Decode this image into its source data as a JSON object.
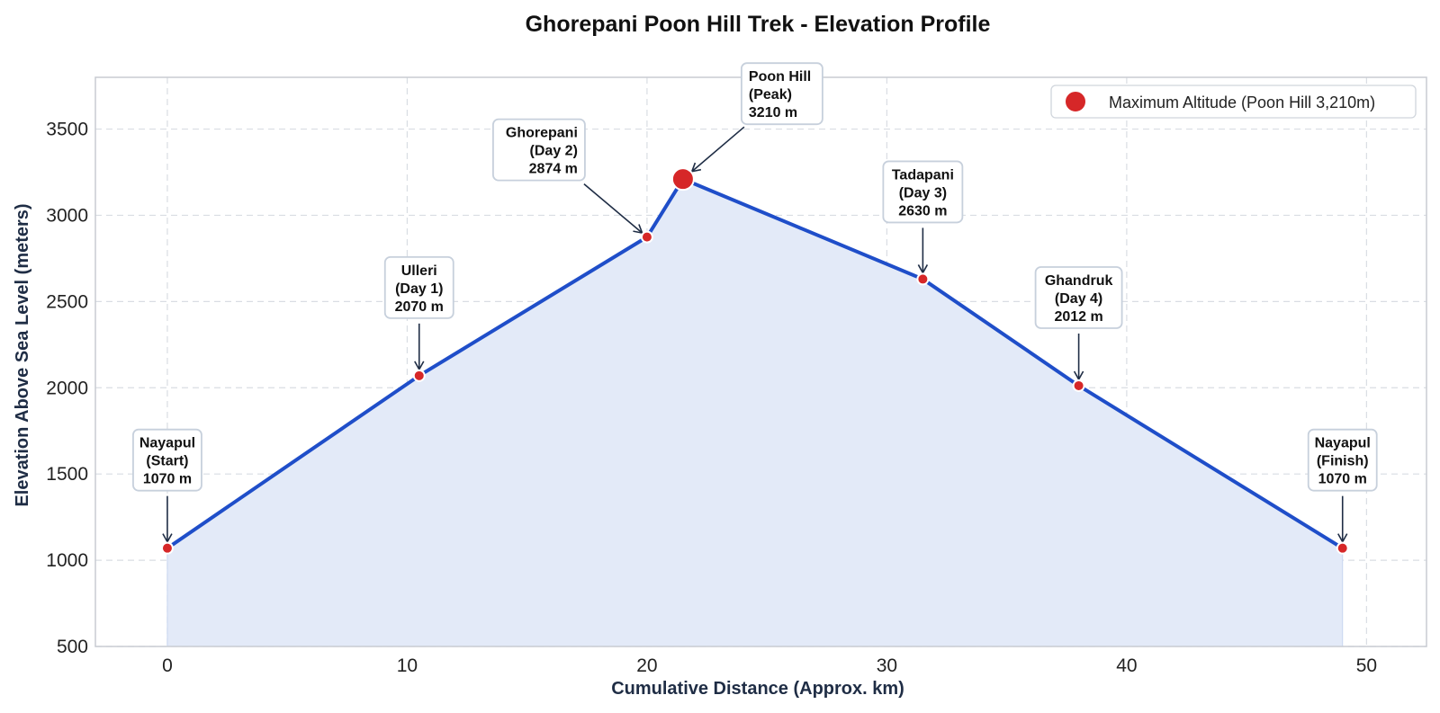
{
  "chart_data": {
    "type": "area",
    "title": "Ghorepani Poon Hill Trek - Elevation Profile",
    "xlabel": "Cumulative Distance (Approx. km)",
    "ylabel": "Elevation Above Sea Level (meters)",
    "xlim": [
      -3,
      52.5
    ],
    "ylim": [
      500,
      3800
    ],
    "xticks": [
      0,
      10,
      20,
      30,
      40,
      50
    ],
    "yticks": [
      500,
      1000,
      1500,
      2000,
      2500,
      3000,
      3500
    ],
    "grid": true,
    "legend_position": "top-right",
    "series": [
      {
        "x": [
          0,
          10.5,
          20,
          21.5,
          31.5,
          38,
          49
        ],
        "y": [
          1070,
          2070,
          2874,
          3210,
          2630,
          2012,
          1070
        ]
      }
    ],
    "points": [
      {
        "x": 0,
        "y": 1070,
        "label": [
          "Nayapul",
          "(Start)",
          "1070 m"
        ]
      },
      {
        "x": 10.5,
        "y": 2070,
        "label": [
          "Ulleri",
          "(Day 1)",
          "2070 m"
        ]
      },
      {
        "x": 20,
        "y": 2874,
        "label": [
          "Ghorepani",
          "(Day 2)",
          "2874 m"
        ]
      },
      {
        "x": 21.5,
        "y": 3210,
        "label": [
          "Poon Hill",
          "(Peak)",
          "3210 m"
        ]
      },
      {
        "x": 31.5,
        "y": 2630,
        "label": [
          "Tadapani",
          "(Day 3)",
          "2630 m"
        ]
      },
      {
        "x": 38,
        "y": 2012,
        "label": [
          "Ghandruk",
          "(Day 4)",
          "2012 m"
        ]
      },
      {
        "x": 49,
        "y": 1070,
        "label": [
          "Nayapul",
          "(Finish)",
          "1070 m"
        ]
      }
    ],
    "highlight": {
      "x": 21.5,
      "y": 3210,
      "legend": "Maximum Altitude (Poon Hill 3,210m)"
    }
  },
  "colors": {
    "line": "#1f4ec9",
    "fill": "#e3eaf8",
    "marker": "#d62728",
    "grid": "#d9dde3",
    "frame": "#c8ccd2",
    "annotation_border": "#c7d0dc",
    "arrow": "#1f2d45"
  }
}
